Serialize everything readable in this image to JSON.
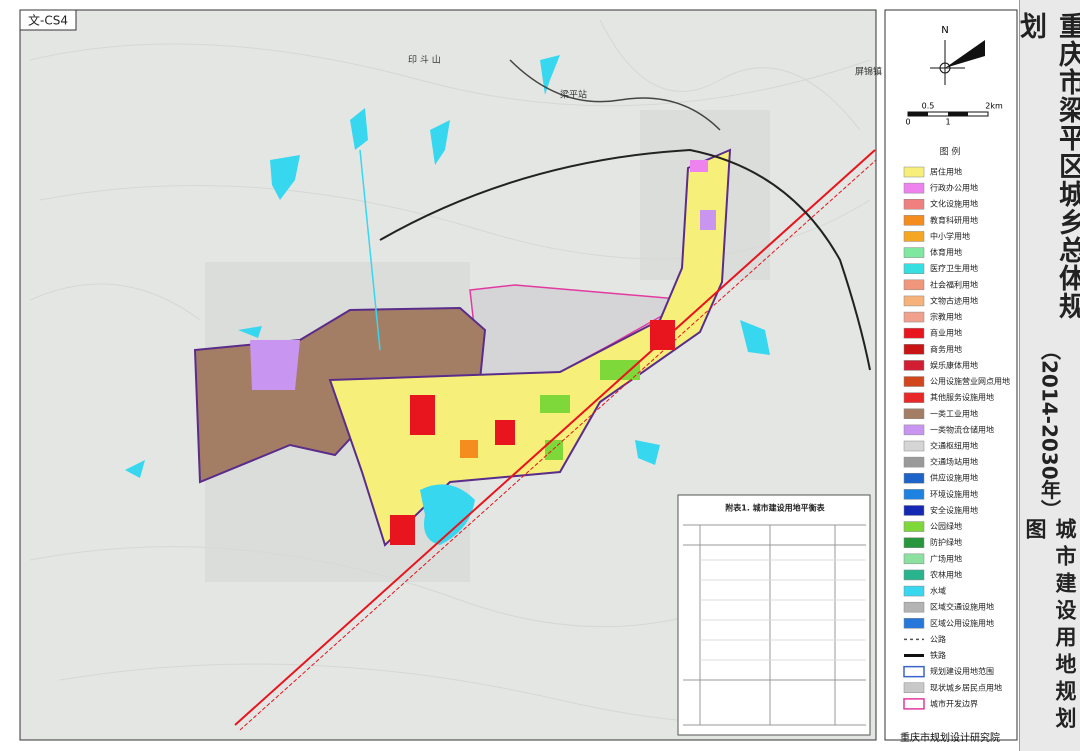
{
  "header": {
    "sheet_id": "文-CS4",
    "title": "重庆市梁平区城乡总体规划",
    "period": "（2014-2030年）",
    "subtitle": "城市建设用地规划图"
  },
  "north": {
    "label": "N"
  },
  "scale": {
    "labels": [
      "0",
      "0.5",
      "1",
      "2km"
    ]
  },
  "places": [
    "印 斗 山",
    "梁平站",
    "屏锦镇"
  ],
  "table": {
    "title": "附表1. 城市建设用地平衡表"
  },
  "legend": {
    "title": "图 例",
    "items": [
      {
        "label": "居住用地",
        "color": "#f6f07a"
      },
      {
        "label": "行政办公用地",
        "color": "#ee82ee"
      },
      {
        "label": "文化设施用地",
        "color": "#f08080"
      },
      {
        "label": "教育科研用地",
        "color": "#f58c1e"
      },
      {
        "label": "中小学用地",
        "color": "#f5a623"
      },
      {
        "label": "体育用地",
        "color": "#7ee8a0"
      },
      {
        "label": "医疗卫生用地",
        "color": "#36e0e0"
      },
      {
        "label": "社会福利用地",
        "color": "#f0967a"
      },
      {
        "label": "文物古迹用地",
        "color": "#f5b27a"
      },
      {
        "label": "宗教用地",
        "color": "#f0a08c"
      },
      {
        "label": "商业用地",
        "color": "#e8141e"
      },
      {
        "label": "商务用地",
        "color": "#c81414"
      },
      {
        "label": "娱乐康体用地",
        "color": "#d21e32"
      },
      {
        "label": "公用设施营业网点用地",
        "color": "#d2461e"
      },
      {
        "label": "其他服务设施用地",
        "color": "#e82828"
      },
      {
        "label": "一类工业用地",
        "color": "#a47e64"
      },
      {
        "label": "一类物流仓储用地",
        "color": "#c896f0"
      },
      {
        "label": "交通枢纽用地",
        "color": "#d5d5d5"
      },
      {
        "label": "交通场站用地",
        "color": "#9a9a9a"
      },
      {
        "label": "供应设施用地",
        "color": "#1e64c8"
      },
      {
        "label": "环境设施用地",
        "color": "#1e82e0"
      },
      {
        "label": "安全设施用地",
        "color": "#1428b4"
      },
      {
        "label": "公园绿地",
        "color": "#7ed83a"
      },
      {
        "label": "防护绿地",
        "color": "#28963c"
      },
      {
        "label": "广场用地",
        "color": "#8ce0a0"
      },
      {
        "label": "农林用地",
        "color": "#28b48c"
      },
      {
        "label": "水域",
        "color": "#36d7ef"
      },
      {
        "label": "区域交通设施用地",
        "color": "#b4b4b4"
      },
      {
        "label": "区域公用设施用地",
        "color": "#2878dc"
      },
      {
        "label": "公路",
        "color": "#555555"
      },
      {
        "label": "铁路",
        "color": "#111111"
      },
      {
        "label": "规划建设用地范围",
        "color": "#3c64c8"
      },
      {
        "label": "现状城乡居民点用地",
        "color": "#c8c8c8"
      },
      {
        "label": "城市开发边界",
        "color": "#e23aa0"
      }
    ]
  },
  "footer": {
    "institution": "重庆市规划设计研究院"
  }
}
